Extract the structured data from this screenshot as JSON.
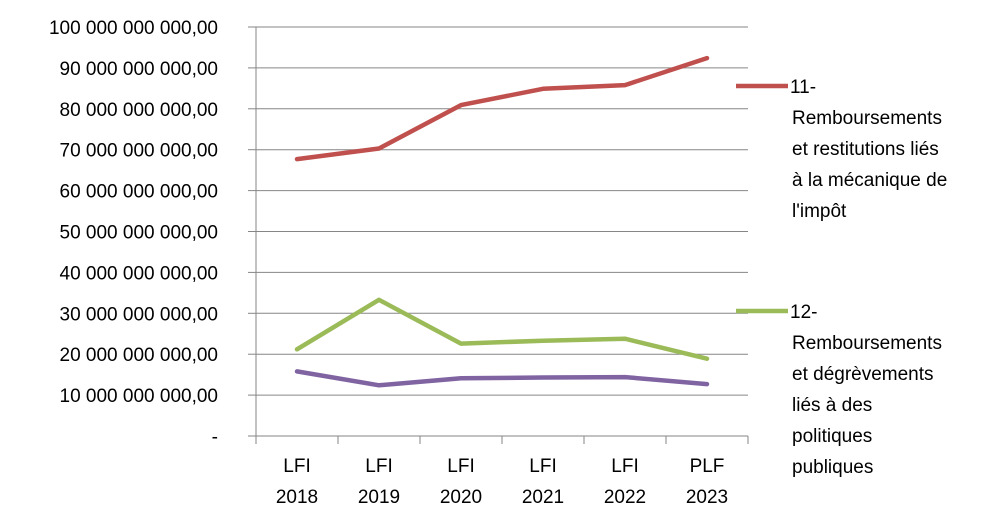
{
  "chart_data": {
    "type": "line",
    "title": "",
    "xlabel": "",
    "ylabel": "",
    "ylim": [
      0,
      100000000000
    ],
    "grid": true,
    "legend_position": "right",
    "y_tick_labels": [
      "-",
      "10 000 000 000,00",
      "20 000 000 000,00",
      "30 000 000 000,00",
      "40 000 000 000,00",
      "50 000 000 000,00",
      "60 000 000 000,00",
      "70 000 000 000,00",
      "80 000 000 000,00",
      "90 000 000 000,00",
      "100 000 000 000,00"
    ],
    "categories": [
      [
        "LFI",
        "2018"
      ],
      [
        "LFI",
        "2019"
      ],
      [
        "LFI",
        "2020"
      ],
      [
        "LFI",
        "2021"
      ],
      [
        "LFI",
        "2022"
      ],
      [
        "PLF",
        "2023"
      ]
    ],
    "series": [
      {
        "name_lines": [
          "11-",
          "Remboursements",
          "et restitutions liés",
          "à la mécanique de",
          "l'impôt"
        ],
        "color": "#c0504d",
        "values": [
          67700000000,
          70300000000,
          80900000000,
          84900000000,
          85800000000,
          92400000000
        ]
      },
      {
        "name_lines": [
          "12-",
          "Remboursements",
          "et dégrèvements",
          "liés à des",
          "politiques",
          "publiques"
        ],
        "color": "#9bbb59",
        "values": [
          21200000000,
          33300000000,
          22600000000,
          23300000000,
          23800000000,
          18900000000
        ]
      },
      {
        "color": "#8064a2",
        "values": [
          15800000000,
          12400000000,
          14100000000,
          14300000000,
          14400000000,
          12700000000
        ]
      }
    ]
  }
}
